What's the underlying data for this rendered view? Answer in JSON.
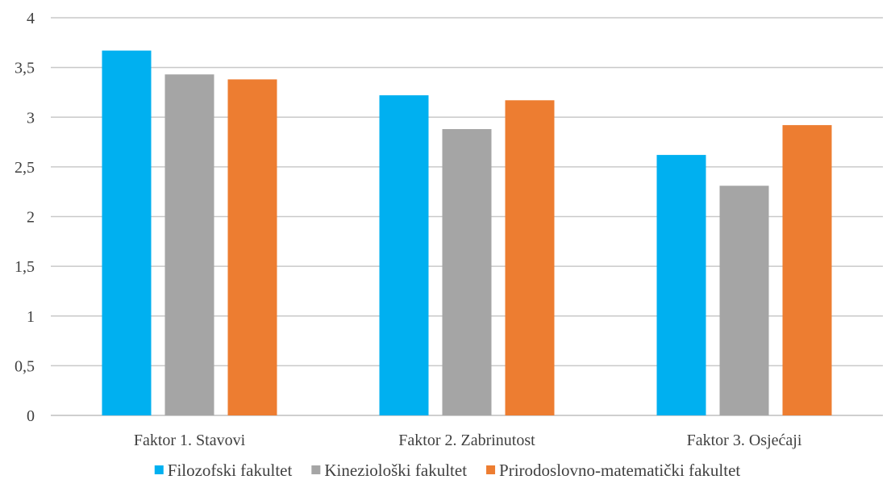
{
  "chart_data": {
    "type": "bar",
    "categories": [
      "Faktor 1. Stavovi",
      "Faktor 2. Zabrinutost",
      "Faktor 3. Osjećaji"
    ],
    "series": [
      {
        "name": "Filozofski fakultet",
        "color": "#00b0f0",
        "values": [
          3.67,
          3.22,
          2.62
        ]
      },
      {
        "name": "Kineziološki fakultet",
        "color": "#a5a5a5",
        "values": [
          3.43,
          2.88,
          2.31
        ]
      },
      {
        "name": "Prirodoslovno-matematički fakultet",
        "color": "#ed7d31",
        "values": [
          3.38,
          3.17,
          2.92
        ]
      }
    ],
    "ylim": [
      0,
      4
    ],
    "yticks": [
      "0",
      "0,5",
      "1",
      "1,5",
      "2",
      "2,5",
      "3",
      "3,5",
      "4"
    ],
    "ytick_values": [
      0,
      0.5,
      1,
      1.5,
      2,
      2.5,
      3,
      3.5,
      4
    ],
    "grid": true,
    "legend_position": "bottom",
    "title": "",
    "xlabel": "",
    "ylabel": ""
  }
}
